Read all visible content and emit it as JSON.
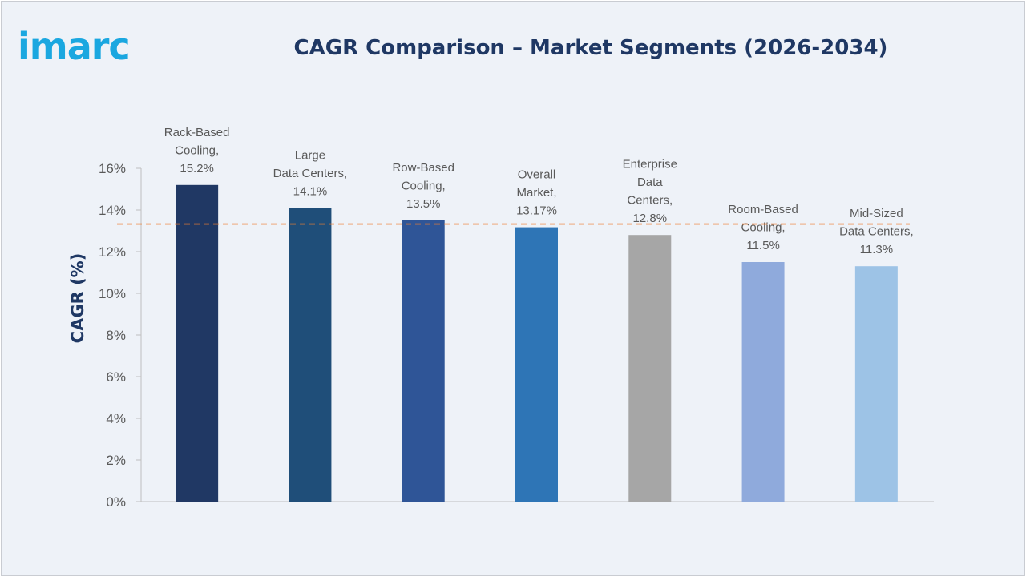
{
  "logo": {
    "text": "imarc"
  },
  "chart_data": {
    "type": "bar",
    "title": "CAGR Comparison – Market Segments (2026-2034)",
    "xlabel": "",
    "ylabel": "CAGR (%)",
    "ylim": [
      0,
      16
    ],
    "yticks": [
      "0%",
      "2%",
      "4%",
      "6%",
      "8%",
      "10%",
      "12%",
      "14%",
      "16%"
    ],
    "grid": false,
    "legend": "none",
    "categories": [
      "Rack-Based Cooling",
      "Large Data Centers",
      "Row-Based Cooling",
      "Overall Market",
      "Enterprise Data Centers",
      "Room-Based Cooling",
      "Mid-Sized Data Centers"
    ],
    "values": [
      15.2,
      14.1,
      13.5,
      13.17,
      12.8,
      11.5,
      11.3
    ],
    "data_labels": [
      [
        "Rack-Based",
        "Cooling,",
        "15.2%"
      ],
      [
        "Large",
        "Data Centers,",
        "14.1%"
      ],
      [
        "Row-Based",
        "Cooling,",
        "13.5%"
      ],
      [
        "Overall",
        "Market,",
        "13.17%"
      ],
      [
        "Enterprise",
        "Data",
        "Centers,",
        "12.8%"
      ],
      [
        "Room-Based",
        "Cooling,",
        "11.5%"
      ],
      [
        "Mid-Sized",
        "Data Centers,",
        "11.3%"
      ]
    ],
    "bar_colors": [
      "#203864",
      "#1f4e79",
      "#2f5597",
      "#2e75b6",
      "#a6a6a6",
      "#8faadc",
      "#9dc3e6"
    ],
    "reference_line": {
      "value": 13.17,
      "style": "dashed",
      "color": "#ed7d31"
    }
  }
}
